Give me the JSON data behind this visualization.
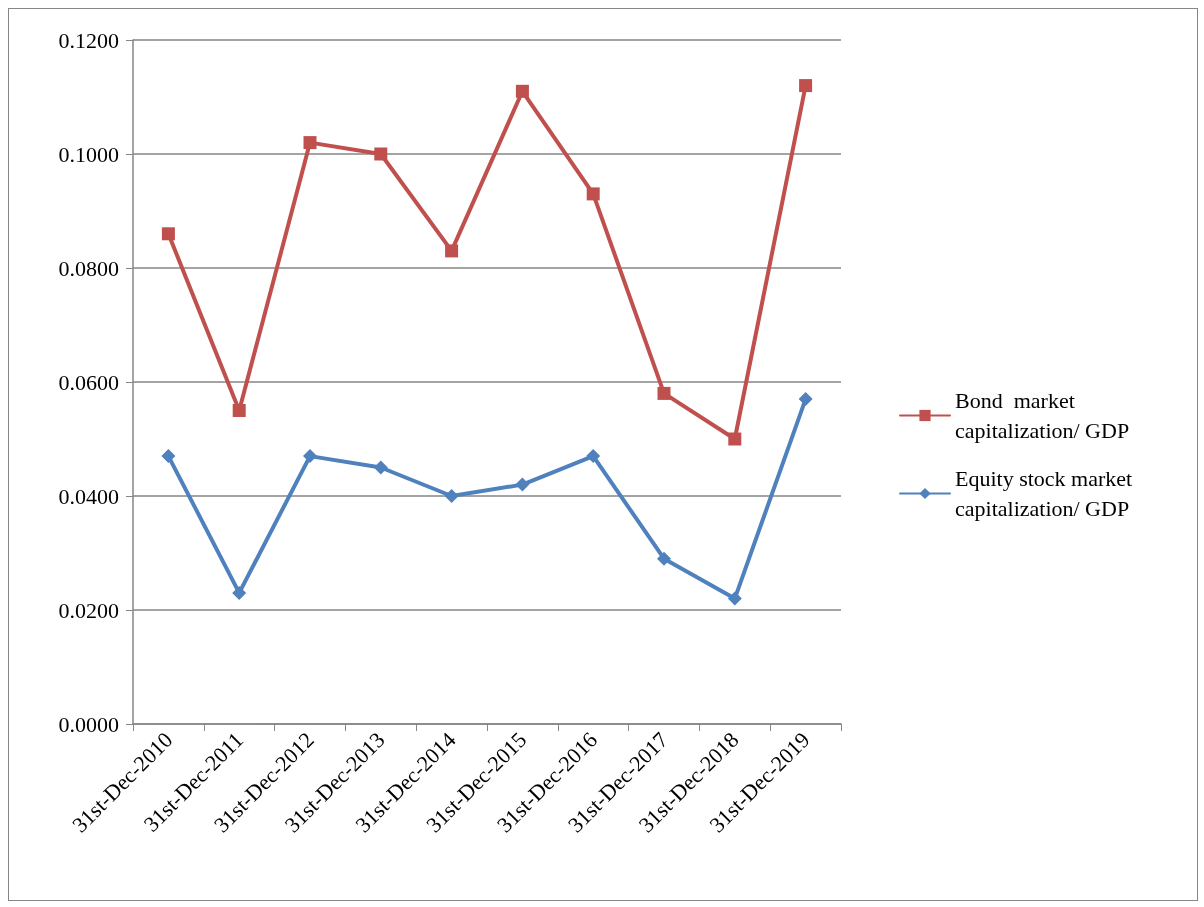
{
  "chart_data": {
    "type": "line",
    "categories": [
      "31st-Dec-2010",
      "31st-Dec-2011",
      "31st-Dec-2012",
      "31st-Dec-2013",
      "31st-Dec-2014",
      "31st-Dec-2015",
      "31st-Dec-2016",
      "31st-Dec-2017",
      "31st-Dec-2018",
      "31st-Dec-2019"
    ],
    "series": [
      {
        "name": "Bond  market capitalization/ GDP",
        "color": "#c0504d",
        "marker": "square",
        "values": [
          0.086,
          0.055,
          0.102,
          0.1,
          0.083,
          0.111,
          0.093,
          0.058,
          0.05,
          0.112
        ]
      },
      {
        "name": "Equity stock market capitalization/ GDP",
        "color": "#4f81bd",
        "marker": "diamond",
        "values": [
          0.047,
          0.023,
          0.047,
          0.045,
          0.04,
          0.042,
          0.047,
          0.029,
          0.022,
          0.057
        ]
      }
    ],
    "ylim": [
      0,
      0.12
    ],
    "yticks": [
      {
        "value": 0,
        "label": "0.0000"
      },
      {
        "value": 0.02,
        "label": "0.0200"
      },
      {
        "value": 0.04,
        "label": "0.0400"
      },
      {
        "value": 0.06,
        "label": "0.0600"
      },
      {
        "value": 0.08,
        "label": "0.0800"
      },
      {
        "value": 0.1,
        "label": "0.1000"
      },
      {
        "value": 0.12,
        "label": "0.1200"
      }
    ],
    "grid": "y",
    "legend": "right",
    "line_style": "solid"
  }
}
